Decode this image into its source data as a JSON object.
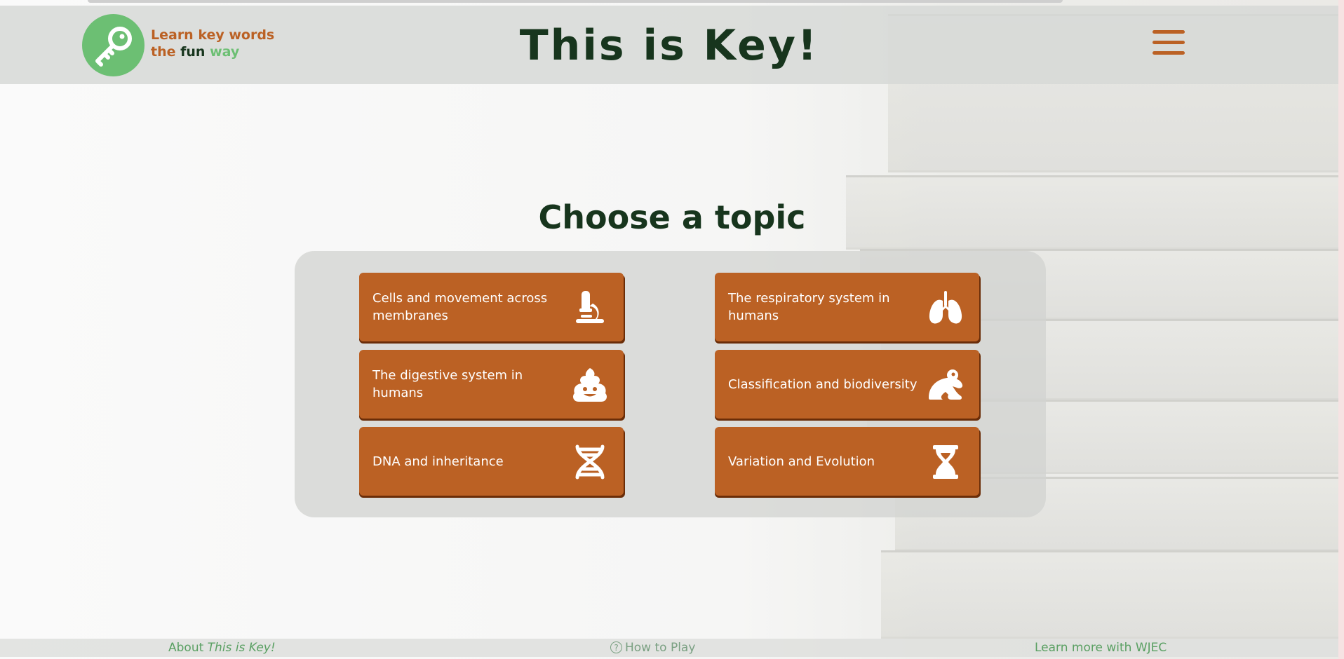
{
  "header": {
    "logo_line1": "Learn key words",
    "logo_the": "the",
    "logo_fun": "fun",
    "logo_way": "way",
    "title": "This is Key!",
    "menu_icon": "hamburger-menu-icon"
  },
  "main": {
    "heading": "Choose a topic",
    "topics": [
      {
        "label": "Cells and movement across membranes",
        "icon": "microscope-icon"
      },
      {
        "label": "The respiratory system in humans",
        "icon": "lungs-icon"
      },
      {
        "label": "The digestive system in humans",
        "icon": "poo-icon"
      },
      {
        "label": "Classification and biodiversity",
        "icon": "frog-icon"
      },
      {
        "label": "DNA and inheritance",
        "icon": "dna-icon"
      },
      {
        "label": "Variation and Evolution",
        "icon": "hourglass-icon"
      }
    ]
  },
  "footer": {
    "about_prefix": "About",
    "about_title": "This is Key!",
    "how_to_play": "How to Play",
    "learn_more": "Learn more with WJEC"
  },
  "colors": {
    "accent_orange": "#bb6124",
    "logo_green": "#6cbf73",
    "dark_green": "#17351d"
  }
}
